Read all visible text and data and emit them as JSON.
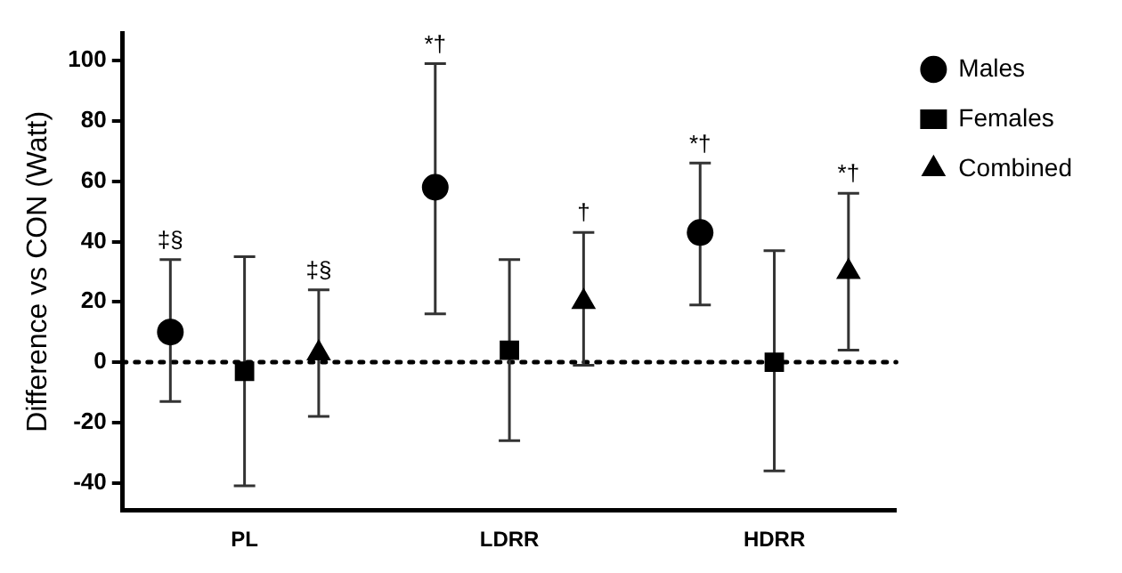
{
  "chart_data": {
    "type": "scatter",
    "ylabel": "Difference vs CON (Watt)",
    "categories": [
      "PL",
      "LDRR",
      "HDRR"
    ],
    "series": [
      {
        "name": "Males",
        "color": "#000000",
        "marker": "circle",
        "values": [
          10,
          58,
          43
        ],
        "errors": [
          [
            -13,
            34
          ],
          [
            16,
            99
          ],
          [
            19,
            66
          ]
        ]
      },
      {
        "name": "Females",
        "color": "#000000",
        "marker": "square",
        "values": [
          -3,
          4,
          0
        ],
        "errors": [
          [
            -41,
            35
          ],
          [
            -26,
            34
          ],
          [
            -36,
            37
          ]
        ]
      },
      {
        "name": "Combined",
        "color": "#000000",
        "marker": "triangle",
        "values": [
          3,
          20,
          30
        ],
        "errors": [
          [
            -18,
            24
          ],
          [
            -1,
            43
          ],
          [
            4,
            56
          ]
        ]
      }
    ],
    "ylim": [
      -49,
      109
    ],
    "yticks": [
      -40,
      -20,
      0,
      20,
      40,
      60,
      80,
      100
    ],
    "grid": false,
    "legend": "top right",
    "ref_lines": [
      {
        "axis": "y",
        "value": 0,
        "line_style": "dotted"
      }
    ],
    "annotations": [
      "‡§",
      "‡§",
      "*†",
      "†",
      "*†",
      "*†"
    ]
  }
}
